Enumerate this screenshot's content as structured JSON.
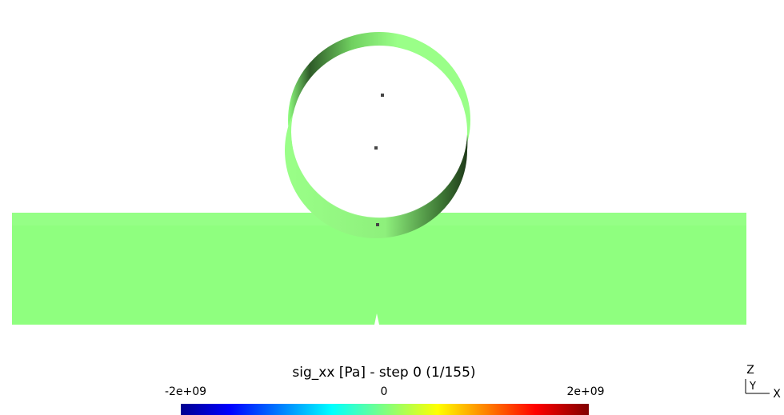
{
  "colorbar": {
    "title": "sig_xx [Pa] - step 0 (1/155)",
    "tick_labels": [
      "-2e+09",
      "0",
      "2e+09"
    ]
  },
  "axes": {
    "z": "Z",
    "y": "Y",
    "x": "X"
  }
}
